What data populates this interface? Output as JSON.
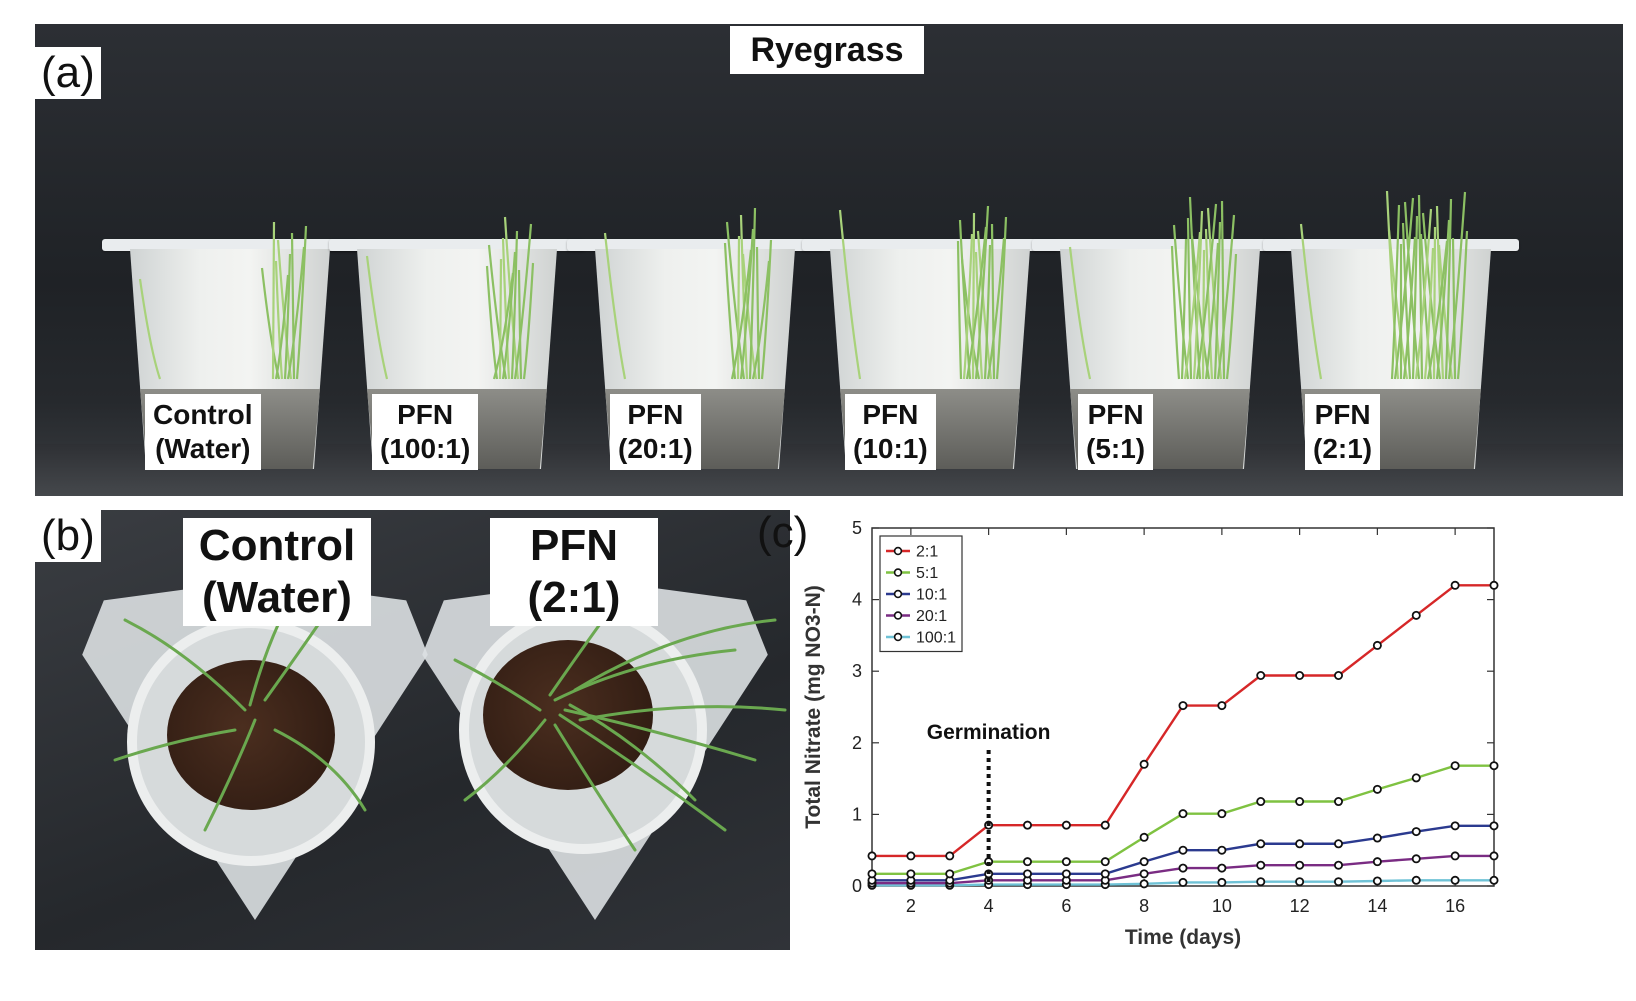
{
  "panel_a": {
    "letter": "(a)",
    "title": "Ryegrass",
    "pots": [
      {
        "line1": "Control",
        "line2": "(Water)"
      },
      {
        "line1": "PFN",
        "line2": "(100:1)"
      },
      {
        "line1": "PFN",
        "line2": "(20:1)"
      },
      {
        "line1": "PFN",
        "line2": "(10:1)"
      },
      {
        "line1": "PFN",
        "line2": "(5:1)"
      },
      {
        "line1": "PFN",
        "line2": "(2:1)"
      }
    ]
  },
  "panel_b": {
    "letter": "(b)",
    "labels": [
      {
        "line1": "Control",
        "line2": "(Water)"
      },
      {
        "line1": "PFN",
        "line2": "(2:1)"
      }
    ]
  },
  "panel_c": {
    "letter": "(c)",
    "annotation": "Germination"
  },
  "chart_data": {
    "type": "line",
    "xlabel": "Time (days)",
    "ylabel": "Total Nitrate (mg NO3-N)",
    "xlim": [
      1,
      17
    ],
    "ylim": [
      0,
      5
    ],
    "xticks": [
      2,
      4,
      6,
      8,
      10,
      12,
      14,
      16
    ],
    "yticks": [
      0,
      1,
      2,
      3,
      4,
      5
    ],
    "grid": false,
    "legend_position": "top-left",
    "x": [
      1,
      2,
      3,
      4,
      5,
      6,
      7,
      8,
      9,
      10,
      11,
      12,
      13,
      14,
      15,
      16,
      17
    ],
    "series": [
      {
        "name": "2:1",
        "color": "#d62728",
        "values": [
          0.42,
          0.42,
          0.42,
          0.85,
          0.85,
          0.85,
          0.85,
          1.7,
          2.52,
          2.52,
          2.94,
          2.94,
          2.94,
          3.36,
          3.78,
          4.2,
          4.2
        ]
      },
      {
        "name": "5:1",
        "color": "#7fc241",
        "values": [
          0.17,
          0.17,
          0.17,
          0.34,
          0.34,
          0.34,
          0.34,
          0.68,
          1.01,
          1.01,
          1.18,
          1.18,
          1.18,
          1.35,
          1.51,
          1.68,
          1.68
        ]
      },
      {
        "name": "10:1",
        "color": "#2b3a8f",
        "values": [
          0.08,
          0.08,
          0.08,
          0.17,
          0.17,
          0.17,
          0.17,
          0.34,
          0.5,
          0.5,
          0.59,
          0.59,
          0.59,
          0.67,
          0.76,
          0.84,
          0.84
        ]
      },
      {
        "name": "20:1",
        "color": "#7a2c83",
        "values": [
          0.04,
          0.04,
          0.04,
          0.08,
          0.08,
          0.08,
          0.08,
          0.17,
          0.25,
          0.25,
          0.29,
          0.29,
          0.29,
          0.34,
          0.38,
          0.42,
          0.42
        ]
      },
      {
        "name": "100:1",
        "color": "#6fc2d6",
        "values": [
          0.01,
          0.01,
          0.01,
          0.02,
          0.02,
          0.02,
          0.02,
          0.03,
          0.05,
          0.05,
          0.06,
          0.06,
          0.06,
          0.07,
          0.08,
          0.08,
          0.08
        ]
      }
    ],
    "annotations": [
      {
        "text": "Germination",
        "x": 4,
        "style": "dotted vertical line"
      }
    ]
  }
}
